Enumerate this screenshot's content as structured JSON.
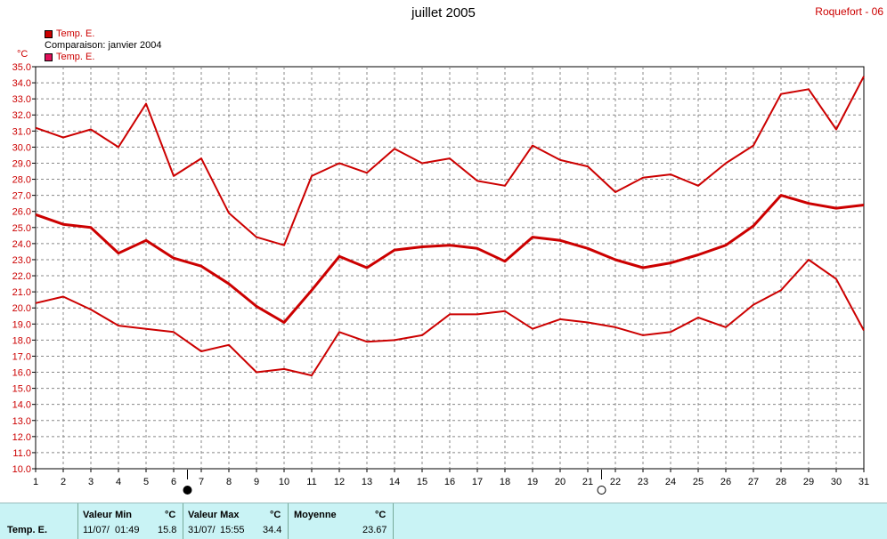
{
  "title": "juillet 2005",
  "station": "Roquefort - 06",
  "legend": [
    {
      "label": "Temp. E.",
      "color": "#cc0000"
    },
    {
      "label": "Comparaison: janvier 2004",
      "color": null
    },
    {
      "label": "Temp. E.",
      "color": "#e0105a"
    }
  ],
  "unit": "°C",
  "markers": {
    "new_moon_day": 6.5,
    "full_moon_day": 21.5
  },
  "chart_data": {
    "type": "line",
    "x": [
      1,
      2,
      3,
      4,
      5,
      6,
      7,
      8,
      9,
      10,
      11,
      12,
      13,
      14,
      15,
      16,
      17,
      18,
      19,
      20,
      21,
      22,
      23,
      24,
      25,
      26,
      27,
      28,
      29,
      30,
      31
    ],
    "ylim": [
      10.0,
      35.0
    ],
    "ytick_step": 1.0,
    "grid": true,
    "line_color": "#cc0000",
    "series": [
      {
        "values": [
          31.2,
          30.6,
          31.1,
          30.0,
          32.7,
          28.2,
          29.3,
          25.9,
          24.4,
          23.9,
          28.2,
          29.0,
          28.4,
          29.9,
          29.0,
          29.3,
          27.9,
          27.6,
          30.1,
          29.2,
          28.8,
          27.2,
          28.1,
          28.3,
          27.6,
          29.0,
          30.1,
          33.3,
          33.6,
          31.1,
          34.4
        ],
        "width": 2
      },
      {
        "values": [
          25.8,
          25.2,
          25.0,
          23.4,
          24.2,
          23.1,
          22.6,
          21.5,
          20.1,
          19.1,
          21.1,
          23.2,
          22.5,
          23.6,
          23.8,
          23.9,
          23.7,
          22.9,
          24.4,
          24.2,
          23.7,
          23.0,
          22.5,
          22.8,
          23.3,
          23.9,
          25.1,
          27.0,
          26.5,
          26.2,
          26.4
        ],
        "width": 3
      },
      {
        "values": [
          20.3,
          20.7,
          19.9,
          18.9,
          18.7,
          18.5,
          17.3,
          17.7,
          16.0,
          16.2,
          15.8,
          18.5,
          17.9,
          18.0,
          18.3,
          19.6,
          19.6,
          19.8,
          18.7,
          19.3,
          19.1,
          18.8,
          18.3,
          18.5,
          19.4,
          18.8,
          20.2,
          21.1,
          23.0,
          21.8,
          18.6
        ],
        "width": 2
      }
    ]
  },
  "footer": {
    "row_label": "Temp. E.",
    "min": {
      "header": "Valeur Min",
      "unit": "°C",
      "date": "11/07/",
      "time": "01:49",
      "value": "15.8"
    },
    "max": {
      "header": "Valeur Max",
      "unit": "°C",
      "date": "31/07/",
      "time": "15:55",
      "value": "34.4"
    },
    "mean": {
      "header": "Moyenne",
      "unit": "°C",
      "value": "23.67"
    }
  }
}
